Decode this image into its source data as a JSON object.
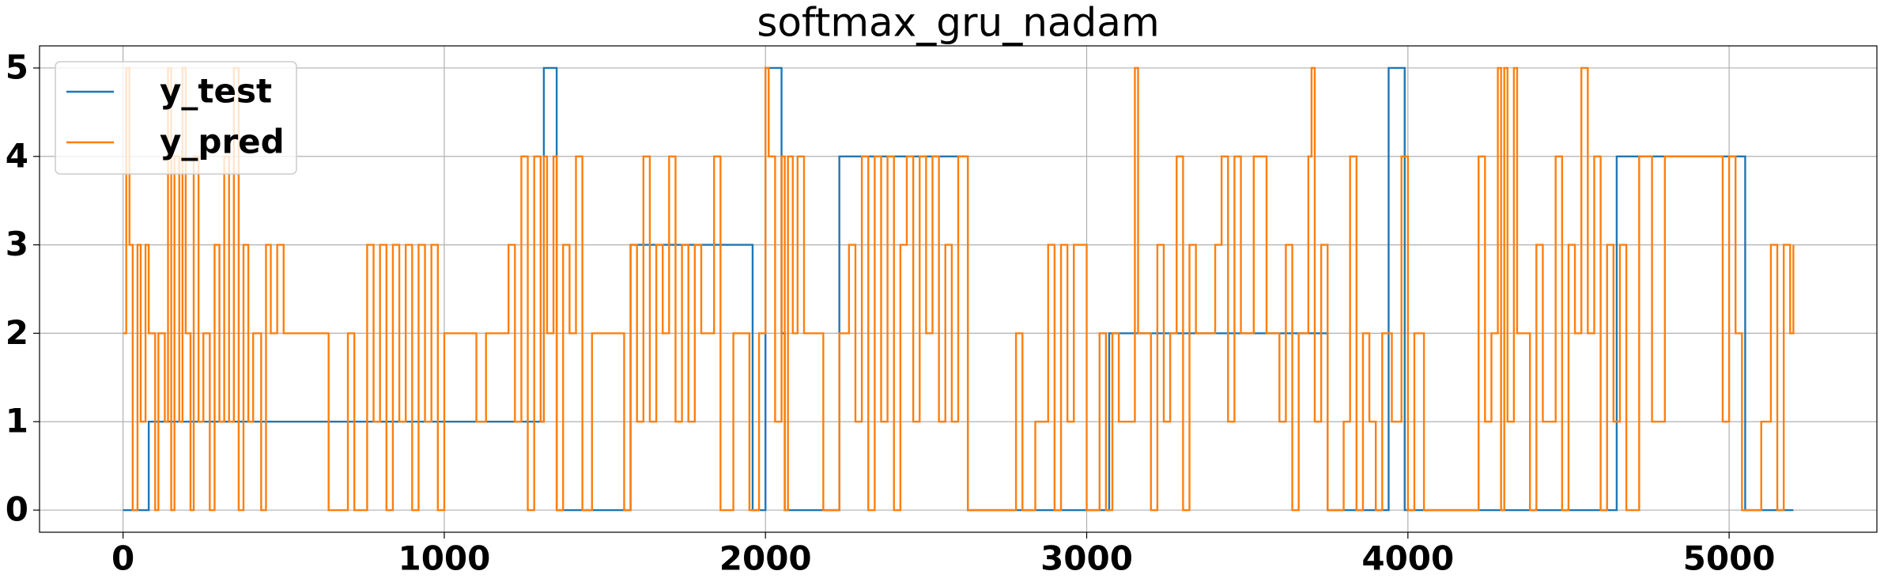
{
  "chart_data": {
    "type": "step",
    "title": "softmax_gru_nadam",
    "xlim": [
      -260,
      5460
    ],
    "ylim": [
      -0.25,
      5.25
    ],
    "xticks": [
      0,
      1000,
      2000,
      3000,
      4000,
      5000
    ],
    "yticks": [
      0,
      1,
      2,
      3,
      4,
      5
    ],
    "grid": true,
    "legend": "upper left",
    "series": [
      {
        "name": "y_test",
        "color": "#1f77b4",
        "x": [
          0,
          80,
          1310,
          1350,
          1580,
          1960,
          2000,
          2050,
          2060,
          2230,
          2630,
          3070,
          3750,
          3940,
          3990,
          4650,
          5050,
          5200
        ],
        "values": [
          0,
          1,
          5,
          0,
          3,
          0,
          5,
          2,
          0,
          4,
          0,
          2,
          0,
          5,
          0,
          4,
          0,
          0
        ]
      },
      {
        "name": "y_pred",
        "color": "#ff7f0e",
        "x": [
          0,
          10,
          20,
          30,
          45,
          55,
          70,
          80,
          100,
          110,
          130,
          140,
          150,
          160,
          175,
          185,
          195,
          210,
          220,
          235,
          250,
          270,
          285,
          300,
          315,
          330,
          345,
          360,
          375,
          390,
          405,
          430,
          445,
          460,
          480,
          500,
          640,
          700,
          720,
          760,
          780,
          800,
          820,
          840,
          860,
          880,
          900,
          920,
          940,
          960,
          980,
          1000,
          1100,
          1130,
          1200,
          1220,
          1240,
          1260,
          1280,
          1300,
          1310,
          1320,
          1340,
          1350,
          1370,
          1390,
          1410,
          1430,
          1460,
          1560,
          1580,
          1600,
          1620,
          1640,
          1660,
          1680,
          1700,
          1720,
          1740,
          1760,
          1780,
          1800,
          1840,
          1860,
          1900,
          1950,
          1980,
          2000,
          2010,
          2030,
          2050,
          2060,
          2070,
          2085,
          2100,
          2120,
          2180,
          2230,
          2260,
          2280,
          2300,
          2320,
          2340,
          2360,
          2380,
          2400,
          2420,
          2440,
          2460,
          2480,
          2500,
          2520,
          2540,
          2560,
          2580,
          2600,
          2630,
          2780,
          2800,
          2840,
          2880,
          2900,
          2920,
          2940,
          2960,
          3000,
          3040,
          3060,
          3080,
          3100,
          3150,
          3160,
          3200,
          3220,
          3240,
          3260,
          3280,
          3300,
          3320,
          3340,
          3400,
          3420,
          3440,
          3460,
          3480,
          3520,
          3560,
          3600,
          3620,
          3640,
          3660,
          3690,
          3700,
          3710,
          3730,
          3750,
          3800,
          3820,
          3840,
          3860,
          3880,
          3900,
          3920,
          3950,
          3980,
          4000,
          4020,
          4050,
          4220,
          4240,
          4260,
          4280,
          4290,
          4300,
          4310,
          4330,
          4340,
          4380,
          4400,
          4420,
          4460,
          4480,
          4500,
          4520,
          4540,
          4560,
          4580,
          4600,
          4620,
          4640,
          4660,
          4680,
          4720,
          4760,
          4800,
          4980,
          5000,
          5020,
          5040,
          5100,
          5130,
          5150,
          5170,
          5190,
          5200
        ],
        "values": [
          2,
          5,
          3,
          0,
          3,
          1,
          3,
          2,
          0,
          2,
          1,
          5,
          0,
          4,
          1,
          5,
          2,
          0,
          4,
          1,
          2,
          0,
          3,
          1,
          4,
          1,
          5,
          0,
          3,
          1,
          2,
          0,
          3,
          2,
          3,
          2,
          0,
          2,
          0,
          3,
          1,
          3,
          0,
          3,
          1,
          3,
          0,
          3,
          1,
          3,
          0,
          2,
          1,
          2,
          3,
          1,
          4,
          0,
          4,
          1,
          4,
          2,
          4,
          0,
          3,
          2,
          4,
          0,
          2,
          0,
          3,
          1,
          4,
          1,
          3,
          2,
          4,
          1,
          3,
          1,
          3,
          2,
          4,
          0,
          2,
          0,
          2,
          5,
          4,
          1,
          4,
          0,
          4,
          2,
          4,
          2,
          0,
          2,
          3,
          1,
          4,
          0,
          4,
          1,
          4,
          0,
          3,
          4,
          1,
          4,
          2,
          4,
          1,
          3,
          1,
          4,
          0,
          2,
          0,
          1,
          3,
          0,
          3,
          1,
          3,
          0,
          2,
          0,
          2,
          1,
          5,
          2,
          0,
          3,
          1,
          2,
          4,
          0,
          3,
          2,
          3,
          4,
          1,
          4,
          2,
          4,
          2,
          1,
          3,
          0,
          2,
          4,
          5,
          1,
          3,
          0,
          1,
          4,
          0,
          2,
          1,
          0,
          2,
          1,
          4,
          0,
          2,
          0,
          4,
          1,
          2,
          5,
          0,
          5,
          1,
          5,
          2,
          0,
          3,
          1,
          4,
          0,
          3,
          2,
          5,
          2,
          4,
          0,
          3,
          1,
          3,
          0,
          4,
          1,
          4,
          1,
          4,
          2,
          0,
          1,
          3,
          0,
          3,
          2,
          3
        ]
      }
    ]
  }
}
